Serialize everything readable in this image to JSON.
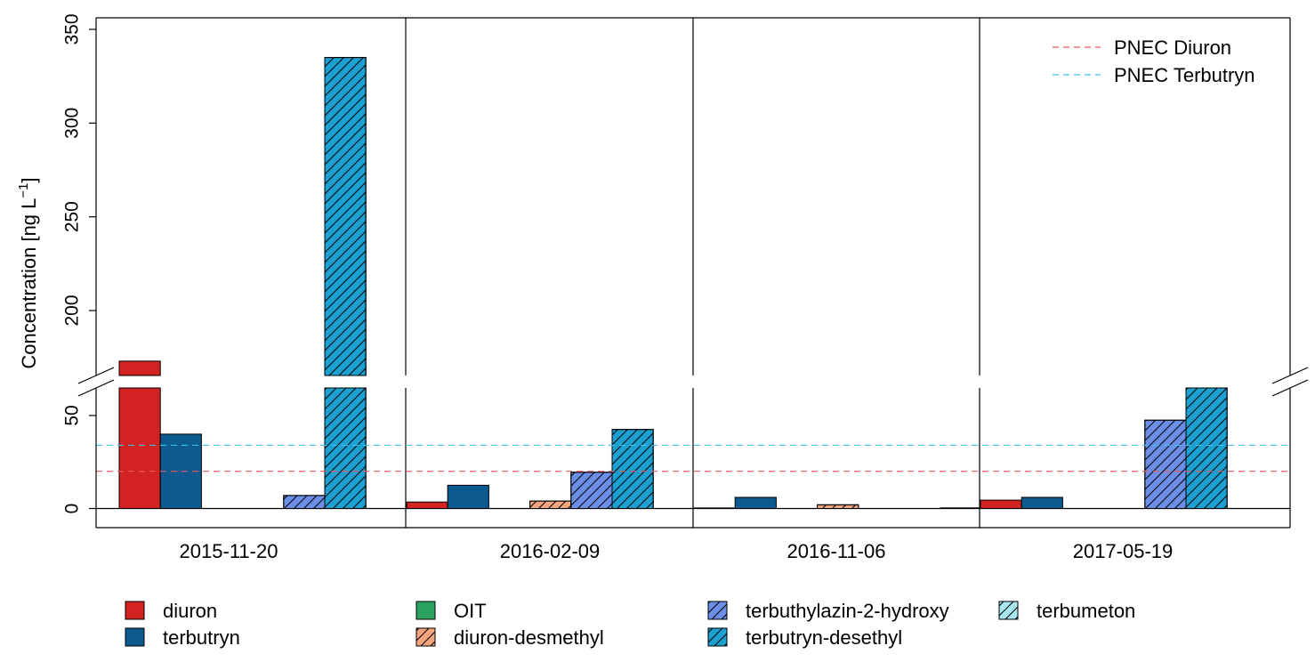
{
  "chart_data": {
    "type": "bar",
    "ylabel": "Concentration [ng L",
    "ylabel_sup": "−1",
    "ylabel_close": "]",
    "y_break": true,
    "y_lower_range": [
      0,
      60
    ],
    "y_upper_range": [
      170,
      350
    ],
    "y_ticks_lower": [
      0,
      50
    ],
    "y_ticks_upper": [
      200,
      250,
      300,
      350
    ],
    "categories": [
      "2015-11-20",
      "2016-02-09",
      "2016-11-06",
      "2017-05-19"
    ],
    "series": [
      {
        "name": "diuron",
        "color": "#d22222",
        "hatch": false,
        "values": [
          173,
          3.5,
          0.3,
          4.5
        ]
      },
      {
        "name": "terbutryn",
        "color": "#0d5a91",
        "hatch": false,
        "values": [
          40,
          12.5,
          6,
          6
        ]
      },
      {
        "name": "OIT",
        "color": "#2ca25f",
        "hatch": false,
        "values": [
          0,
          0,
          0,
          0
        ]
      },
      {
        "name": "diuron-desmethyl",
        "color": "#f4a57e",
        "hatch": true,
        "values": [
          0,
          4,
          2,
          0
        ]
      },
      {
        "name": "terbuthylazin-2-hydroxy",
        "color": "#6b8fe6",
        "hatch": true,
        "values": [
          7,
          19.5,
          0,
          47.5
        ]
      },
      {
        "name": "terbutryn-desethyl",
        "color": "#1ca0d2",
        "hatch": true,
        "values": [
          335,
          42.5,
          0,
          60.5
        ]
      },
      {
        "name": "terbumeton",
        "color": "#a7e8f2",
        "hatch": true,
        "values": [
          0,
          0,
          0.3,
          0
        ]
      }
    ],
    "reference_lines": [
      {
        "name": "PNEC Diuron",
        "value": 20,
        "color": "#e8585a"
      },
      {
        "name": "PNEC Terbutryn",
        "value": 34,
        "color": "#3cc0ec"
      }
    ],
    "grid": false,
    "legend_position": "bottom",
    "reference_legend_position": "top-right"
  }
}
